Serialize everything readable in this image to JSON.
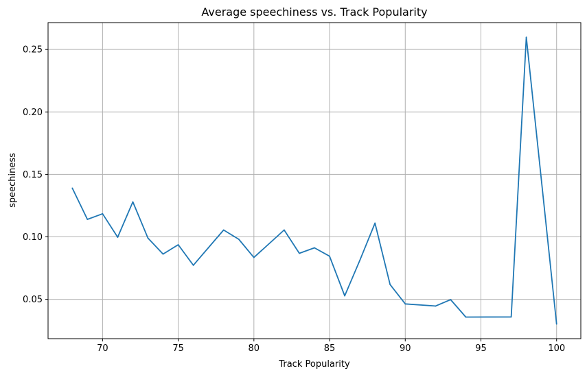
{
  "chart_data": {
    "type": "line",
    "title": "Average speechiness vs. Track Popularity",
    "xlabel": "Track Popularity",
    "ylabel": "speechiness",
    "xlim": [
      66.4,
      101.6
    ],
    "ylim": [
      0.0185,
      0.2715
    ],
    "xticks": [
      70,
      75,
      80,
      85,
      90,
      95,
      100
    ],
    "yticks": [
      0.05,
      0.1,
      0.15,
      0.2,
      0.25
    ],
    "ytick_labels": [
      "0.05",
      "0.10",
      "0.15",
      "0.20",
      "0.25"
    ],
    "grid": true,
    "colors": {
      "line": "#1f77b4",
      "grid": "#b0b0b0"
    },
    "series": [
      {
        "x": [
          68,
          69,
          70,
          71,
          72,
          73,
          74,
          75,
          76,
          78,
          79,
          80,
          82,
          83,
          84,
          85,
          86,
          87,
          88,
          89,
          90,
          92,
          93,
          94,
          97,
          98,
          100
        ],
        "y": [
          0.139,
          0.114,
          0.1185,
          0.0997,
          0.128,
          0.099,
          0.0862,
          0.0937,
          0.0773,
          0.1055,
          0.0981,
          0.0835,
          0.1055,
          0.0868,
          0.0912,
          0.0845,
          0.0528,
          0.0812,
          0.111,
          0.0618,
          0.0463,
          0.0446,
          0.0497,
          0.0358,
          0.0359,
          0.2598,
          0.0302
        ]
      }
    ]
  }
}
